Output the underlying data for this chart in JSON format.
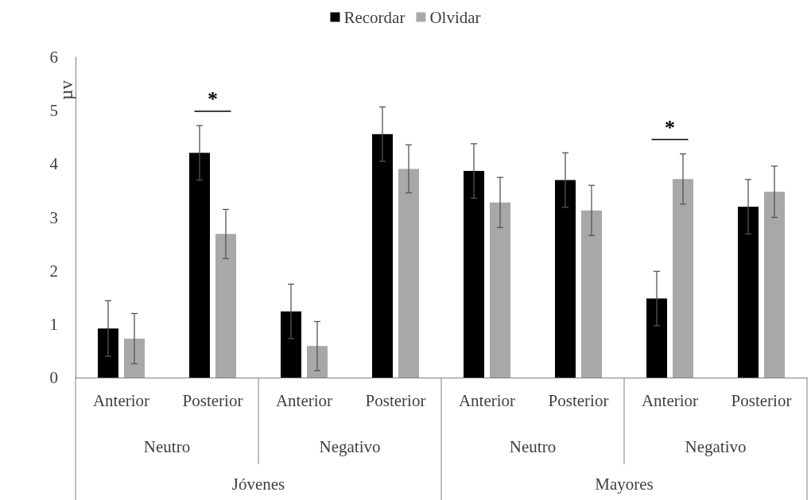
{
  "chart_data": {
    "type": "bar",
    "ylabel": "µv",
    "categories": [
      "Anterior",
      "Posterior",
      "Anterior",
      "Posterior",
      "Anterior",
      "Posterior",
      "Anterior",
      "Posterior"
    ],
    "series": [
      {
        "name": "Recordar",
        "color": "#000000",
        "values": [
          0.92,
          4.21,
          1.24,
          4.56,
          3.87,
          3.7,
          1.48,
          3.2
        ],
        "errors": [
          0.52,
          0.51,
          0.51,
          0.51,
          0.51,
          0.51,
          0.51,
          0.51
        ]
      },
      {
        "name": "Olvidar",
        "color": "#a9a7a7",
        "values": [
          0.73,
          2.69,
          0.59,
          3.91,
          3.28,
          3.13,
          3.72,
          3.48
        ],
        "errors": [
          0.47,
          0.46,
          0.46,
          0.45,
          0.47,
          0.47,
          0.47,
          0.48
        ]
      }
    ],
    "ylim": [
      0,
      6
    ],
    "yticks": [
      0,
      1,
      2,
      3,
      4,
      5,
      6
    ],
    "grid": false,
    "legend": "top",
    "annotations": [
      "Neutro",
      "Negativo",
      "Neutro",
      "Negativo",
      "Jóvenes",
      "Mayores",
      "*",
      "*"
    ]
  }
}
